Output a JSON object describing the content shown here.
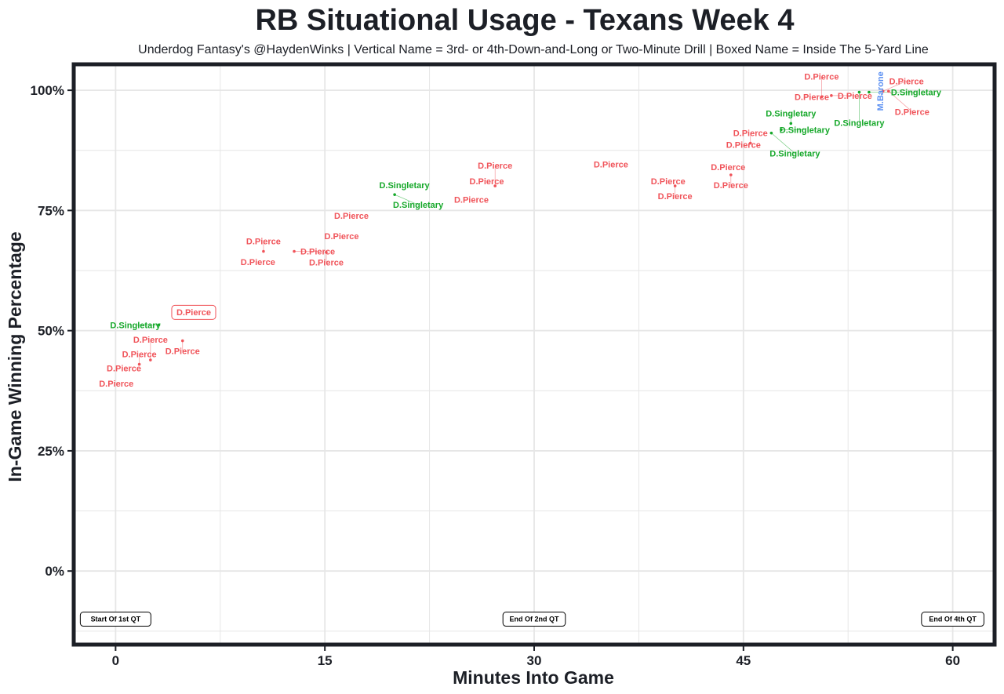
{
  "chart_data": {
    "type": "scatter",
    "title": "RB Situational Usage - Texans Week 4",
    "subtitle": "Underdog Fantasy's @HaydenWinks | Vertical Name = 3rd- or 4th-Down-and-Long or Two-Minute Drill | Boxed Name = Inside The 5-Yard Line",
    "xlabel": "Minutes Into Game",
    "ylabel": "In-Game Winning Percentage",
    "xlim": [
      -3,
      63
    ],
    "ylim": [
      -15.3,
      105.4
    ],
    "xticks": [
      {
        "v": 0,
        "label": "0"
      },
      {
        "v": 15,
        "label": "15"
      },
      {
        "v": 30,
        "label": "30"
      },
      {
        "v": 45,
        "label": "45"
      },
      {
        "v": 60,
        "label": "60"
      }
    ],
    "yticks": [
      {
        "v": 0,
        "label": "0%"
      },
      {
        "v": 25,
        "label": "25%"
      },
      {
        "v": 50,
        "label": "50%"
      },
      {
        "v": 75,
        "label": "75%"
      },
      {
        "v": 100,
        "label": "100%"
      }
    ],
    "grid": true,
    "colors": {
      "D.Pierce": "#f0545a",
      "D.Singletary": "#16a82a",
      "M.Barone": "#5a8ff2",
      "panel_border": "#1c1f26",
      "grid": "#e6e6e6"
    },
    "annotations": [
      {
        "x": 0,
        "y": -10,
        "label": "Start Of 1st QT"
      },
      {
        "x": 30,
        "y": -10,
        "label": "End Of 2nd QT"
      },
      {
        "x": 60,
        "y": -10,
        "label": "End Of 4th QT"
      }
    ],
    "points": [
      {
        "x": 0.05,
        "y": 39.0,
        "player": "D.Pierce"
      },
      {
        "x": 0.6,
        "y": 42.2,
        "player": "D.Pierce"
      },
      {
        "x": 1.7,
        "y": 43.0,
        "player": "D.Pierce"
      },
      {
        "x": 2.5,
        "y": 43.9,
        "player": "D.Pierce"
      },
      {
        "x": 4.8,
        "y": 47.9,
        "player": "D.Pierce"
      },
      {
        "x": 3.1,
        "y": 51.2,
        "player": "D.Singletary"
      },
      {
        "x": 5.6,
        "y": 53.8,
        "player": "D.Pierce",
        "boxed": true
      },
      {
        "x": 10.2,
        "y": 64.3,
        "player": "D.Pierce"
      },
      {
        "x": 10.6,
        "y": 66.5,
        "player": "D.Pierce"
      },
      {
        "x": 12.8,
        "y": 66.5,
        "player": "D.Pierce"
      },
      {
        "x": 15.1,
        "y": 66.3,
        "player": "D.Pierce"
      },
      {
        "x": 16.2,
        "y": 69.7,
        "player": "D.Pierce"
      },
      {
        "x": 16.9,
        "y": 73.9,
        "player": "D.Pierce"
      },
      {
        "x": 20.7,
        "y": 80.3,
        "player": "D.Singletary"
      },
      {
        "x": 20.0,
        "y": 78.3,
        "player": "D.Singletary"
      },
      {
        "x": 25.5,
        "y": 77.3,
        "player": "D.Pierce"
      },
      {
        "x": 26.6,
        "y": 81.1,
        "player": "D.Pierce"
      },
      {
        "x": 27.2,
        "y": 80.1,
        "player": "D.Pierce"
      },
      {
        "x": 35.5,
        "y": 84.6,
        "player": "D.Pierce"
      },
      {
        "x": 39.6,
        "y": 81.1,
        "player": "D.Pierce"
      },
      {
        "x": 40.1,
        "y": 80.1,
        "player": "D.Pierce"
      },
      {
        "x": 43.9,
        "y": 84.0,
        "player": "D.Pierce"
      },
      {
        "x": 44.1,
        "y": 82.4,
        "player": "D.Pierce"
      },
      {
        "x": 45.0,
        "y": 88.7,
        "player": "D.Pierce"
      },
      {
        "x": 45.5,
        "y": 89.0,
        "player": "D.Pierce"
      },
      {
        "x": 48.4,
        "y": 93.1,
        "player": "D.Singletary"
      },
      {
        "x": 47.7,
        "y": 91.8,
        "player": "D.Singletary"
      },
      {
        "x": 47.0,
        "y": 91.1,
        "player": "D.Singletary"
      },
      {
        "x": 49.9,
        "y": 98.6,
        "player": "D.Pierce"
      },
      {
        "x": 50.6,
        "y": 98.6,
        "player": "D.Pierce"
      },
      {
        "x": 51.3,
        "y": 98.9,
        "player": "D.Pierce"
      },
      {
        "x": 53.3,
        "y": 99.6,
        "player": "D.Singletary"
      },
      {
        "x": 54.0,
        "y": 99.6,
        "player": "D.Singletary"
      },
      {
        "x": 55.0,
        "y": 99.8,
        "player": "D.Pierce"
      },
      {
        "x": 55.4,
        "y": 99.8,
        "player": "D.Pierce"
      },
      {
        "x": 54.8,
        "y": 99.8,
        "player": "M.Barone",
        "vertical": true
      }
    ]
  }
}
